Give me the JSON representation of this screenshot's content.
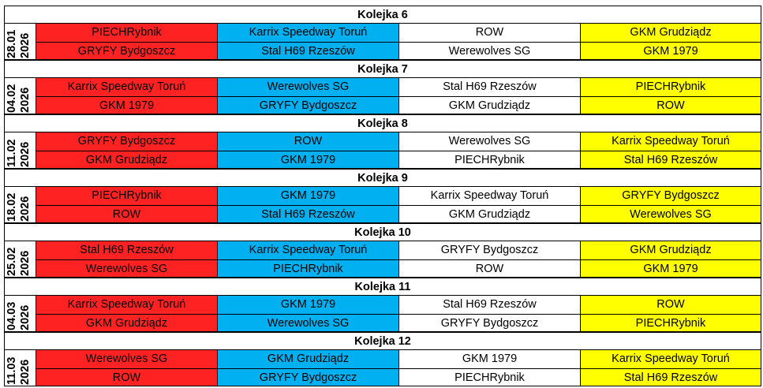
{
  "colors": {
    "col1": "#ff2222",
    "col2": "#00b0f0",
    "col3": "#ffffff",
    "col4": "#ffff00"
  },
  "rounds": [
    {
      "title": "Kolejka 6",
      "date": "28.01",
      "year": "2026",
      "rows": [
        [
          "PIECHRybnik",
          "Karrix Speedway Toruń",
          "ROW",
          "GKM Grudziądz"
        ],
        [
          "GRYFY Bydgoszcz",
          "Stal H69 Rzeszów",
          "Werewolves SG",
          "GKM 1979"
        ]
      ]
    },
    {
      "title": "Kolejka 7",
      "date": "04.02",
      "year": "2026",
      "rows": [
        [
          "Karrix Speedway Toruń",
          "Werewolves SG",
          "Stal H69 Rzeszów",
          "PIECHRybnik"
        ],
        [
          "GKM 1979",
          "GRYFY Bydgoszcz",
          "GKM Grudziądz",
          "ROW"
        ]
      ]
    },
    {
      "title": "Kolejka 8",
      "date": "11.02",
      "year": "2026",
      "rows": [
        [
          "GRYFY Bydgoszcz",
          "ROW",
          "Werewolves SG",
          "Karrix Speedway Toruń"
        ],
        [
          "GKM Grudziądz",
          "GKM 1979",
          "PIECHRybnik",
          "Stal H69 Rzeszów"
        ]
      ]
    },
    {
      "title": "Kolejka 9",
      "date": "18.02",
      "year": "2026",
      "rows": [
        [
          "PIECHRybnik",
          "GKM 1979",
          "Karrix Speedway Toruń",
          "GRYFY Bydgoszcz"
        ],
        [
          "ROW",
          "Stal H69 Rzeszów",
          "GKM Grudziądz",
          "Werewolves SG"
        ]
      ]
    },
    {
      "title": "Kolejka 10",
      "date": "25.02",
      "year": "2026",
      "rows": [
        [
          "Stal H69 Rzeszów",
          "Karrix Speedway Toruń",
          "GRYFY Bydgoszcz",
          "GKM Grudziądz"
        ],
        [
          "Werewolves SG",
          "PIECHRybnik",
          "ROW",
          "GKM 1979"
        ]
      ]
    },
    {
      "title": "Kolejka 11",
      "date": "04.03",
      "year": "2026",
      "rows": [
        [
          "Karrix Speedway Toruń",
          "GKM 1979",
          "Stal H69 Rzeszów",
          "ROW"
        ],
        [
          "GKM Grudziądz",
          "Werewolves SG",
          "GRYFY Bydgoszcz",
          "PIECHRybnik"
        ]
      ]
    },
    {
      "title": "Kolejka 12",
      "date": "11.03",
      "year": "2026",
      "rows": [
        [
          "Werewolves SG",
          "GKM Grudziądz",
          "GKM 1979",
          "Karrix Speedway Toruń"
        ],
        [
          "ROW",
          "GRYFY Bydgoszcz",
          "PIECHRybnik",
          "Stal H69 Rzeszów"
        ]
      ]
    }
  ]
}
